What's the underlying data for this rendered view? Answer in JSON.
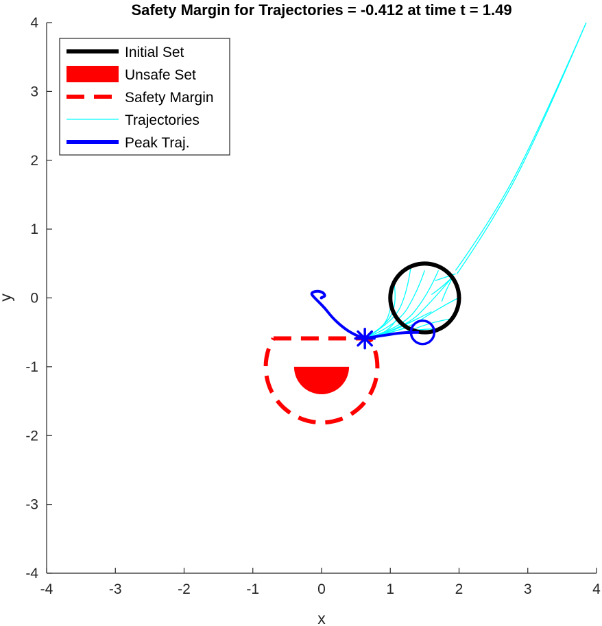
{
  "chart_data": {
    "type": "line",
    "title": "Safety Margin for Trajectories = -0.412 at time t = 1.49",
    "xlabel": "x",
    "ylabel": "y",
    "xlim": [
      -4,
      4
    ],
    "ylim": [
      -4,
      4
    ],
    "xticks": [
      "-4",
      "-3",
      "-2",
      "-1",
      "0",
      "1",
      "2",
      "3",
      "4"
    ],
    "yticks": [
      "-4",
      "-3",
      "-2",
      "-1",
      "0",
      "1",
      "2",
      "3",
      "4"
    ],
    "grid": false,
    "legend_position": "top-left",
    "legend": [
      {
        "label": "Initial Set",
        "style": "thick-line",
        "color": "#000000"
      },
      {
        "label": "Unsafe Set",
        "style": "patch",
        "color": "#ff0000"
      },
      {
        "label": "Safety Margin",
        "style": "dashed-line",
        "color": "#ff0000"
      },
      {
        "label": "Trajectories",
        "style": "thin-line",
        "color": "#00ffff"
      },
      {
        "label": "Peak Traj.",
        "style": "thick-line",
        "color": "#0000ff"
      }
    ],
    "initial_set": {
      "center": [
        1.5,
        0
      ],
      "radius": 0.5
    },
    "unsafe_set": {
      "center": [
        0,
        -1
      ],
      "radius": 0.4,
      "half": "lower"
    },
    "safety_margin": {
      "center": [
        0,
        -1
      ],
      "inner_radius": 0.4,
      "margin": 0.412,
      "y_top": -0.588
    },
    "trajectories": [
      [
        [
          1.5,
          -0.5
        ],
        [
          1.2,
          -0.5
        ],
        [
          0.9,
          -0.55
        ],
        [
          0.62,
          -0.59
        ]
      ],
      [
        [
          1.25,
          -0.43
        ],
        [
          1.0,
          -0.5
        ],
        [
          0.8,
          -0.55
        ],
        [
          0.62,
          -0.59
        ]
      ],
      [
        [
          1.1,
          -0.3
        ],
        [
          1.0,
          -0.45
        ],
        [
          0.8,
          -0.55
        ],
        [
          0.62,
          -0.59
        ]
      ],
      [
        [
          1.01,
          -0.1
        ],
        [
          0.98,
          -0.3
        ],
        [
          0.8,
          -0.5
        ],
        [
          0.62,
          -0.59
        ]
      ],
      [
        [
          1.05,
          0.25
        ],
        [
          1.1,
          -0.05
        ],
        [
          0.95,
          -0.4
        ],
        [
          0.62,
          -0.59
        ]
      ],
      [
        [
          1.3,
          0.46
        ],
        [
          1.25,
          0.1
        ],
        [
          1.05,
          -0.35
        ],
        [
          0.62,
          -0.59
        ]
      ],
      [
        [
          1.5,
          0.4
        ],
        [
          1.4,
          0.1
        ],
        [
          1.1,
          -0.4
        ],
        [
          0.62,
          -0.59
        ]
      ],
      [
        [
          1.7,
          0.4
        ],
        [
          1.55,
          0.05
        ],
        [
          1.15,
          -0.45
        ],
        [
          0.62,
          -0.59
        ]
      ],
      [
        [
          1.9,
          0.3
        ],
        [
          1.65,
          0.0
        ],
        [
          1.2,
          -0.45
        ],
        [
          0.62,
          -0.59
        ]
      ],
      [
        [
          1.99,
          0.0
        ],
        [
          1.7,
          -0.15
        ],
        [
          1.2,
          -0.48
        ],
        [
          0.62,
          -0.59
        ]
      ],
      [
        [
          1.9,
          -0.3
        ],
        [
          1.6,
          -0.35
        ],
        [
          1.1,
          -0.55
        ],
        [
          0.62,
          -0.59
        ]
      ],
      [
        [
          1.7,
          -0.45
        ],
        [
          1.4,
          -0.45
        ],
        [
          1.0,
          -0.55
        ],
        [
          0.62,
          -0.59
        ]
      ],
      [
        [
          1.4,
          -0.3
        ],
        [
          1.2,
          -0.4
        ],
        [
          0.9,
          -0.52
        ],
        [
          0.62,
          -0.59
        ]
      ],
      [
        [
          1.6,
          -0.2
        ],
        [
          1.4,
          -0.3
        ],
        [
          1.0,
          -0.5
        ],
        [
          0.62,
          -0.59
        ]
      ],
      [
        [
          1.95,
          0.4
        ],
        [
          2.45,
          1.1
        ],
        [
          3.1,
          2.3
        ],
        [
          3.85,
          4.0
        ]
      ],
      [
        [
          1.97,
          0.35
        ],
        [
          2.45,
          1.05
        ],
        [
          3.1,
          2.25
        ],
        [
          3.85,
          4.0
        ]
      ],
      [
        [
          1.9,
          0.3
        ],
        [
          1.75,
          0.15
        ],
        [
          1.6,
          0.05
        ]
      ],
      [
        [
          1.95,
          0.35
        ],
        [
          1.8,
          0.3
        ],
        [
          1.65,
          0.25
        ]
      ],
      [
        [
          1.92,
          0.32
        ],
        [
          1.8,
          0.1
        ],
        [
          1.75,
          -0.05
        ]
      ]
    ],
    "peak_trajectory": {
      "x": [
        1.4,
        1.2,
        1.0,
        0.8,
        0.62,
        0.45,
        0.3,
        0.15,
        0.05,
        -0.05,
        -0.12,
        -0.15,
        -0.12,
        -0.05,
        0.02,
        0.05,
        0.04,
        0.01,
        -0.01,
        0.0
      ],
      "y": [
        -0.5,
        -0.5,
        -0.53,
        -0.56,
        -0.59,
        -0.52,
        -0.42,
        -0.28,
        -0.15,
        -0.05,
        0.02,
        0.06,
        0.09,
        0.1,
        0.08,
        0.04,
        0.02,
        0.01,
        0.0,
        0.0
      ]
    },
    "peak_start": [
      1.47,
      -0.5
    ],
    "peak_point": [
      0.63,
      -0.59
    ]
  }
}
